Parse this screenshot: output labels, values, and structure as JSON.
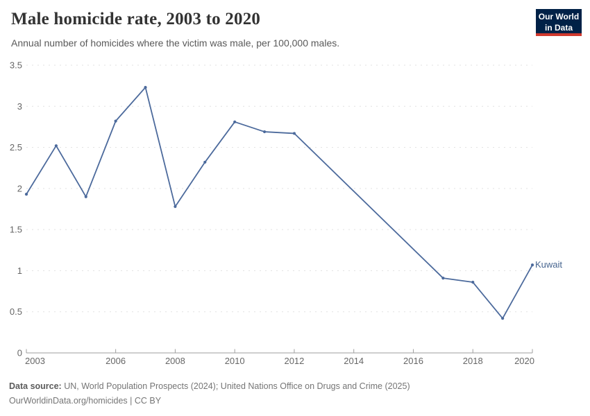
{
  "header": {
    "title": "Male homicide rate, 2003 to 2020",
    "subtitle": "Annual number of homicides where the victim was male, per 100,000 males.",
    "logo": {
      "line1": "Our World",
      "line2": "in Data",
      "bg_color": "#002147",
      "bar_color": "#d0392e"
    }
  },
  "chart_data": {
    "type": "line",
    "title": "Male homicide rate, 2003 to 2020",
    "xlabel": "",
    "ylabel": "",
    "xlim": [
      2003,
      2020
    ],
    "ylim": [
      0,
      3.5
    ],
    "grid": "horizontal-dashed",
    "legend_position": "end-of-line",
    "x_ticks": [
      2003,
      2006,
      2008,
      2010,
      2012,
      2014,
      2016,
      2018,
      2020
    ],
    "y_ticks": [
      0,
      0.5,
      1,
      1.5,
      2,
      2.5,
      3,
      3.5
    ],
    "note": "no data for 2013-2016; line connects 2012 directly to 2017",
    "series": [
      {
        "name": "Kuwait",
        "color": "#4c6a9c",
        "points": [
          [
            2003,
            1.93
          ],
          [
            2004,
            2.52
          ],
          [
            2005,
            1.9
          ],
          [
            2006,
            2.82
          ],
          [
            2007,
            3.23
          ],
          [
            2008,
            1.78
          ],
          [
            2009,
            2.32
          ],
          [
            2010,
            2.81
          ],
          [
            2011,
            2.69
          ],
          [
            2012,
            2.67
          ],
          [
            2017,
            0.91
          ],
          [
            2018,
            0.86
          ],
          [
            2019,
            0.42
          ],
          [
            2020,
            1.07
          ]
        ]
      }
    ],
    "colors": {
      "line": "#4c6a9c",
      "gridline": "#e1e1e1",
      "axis": "#9e9e9e",
      "tick_label": "#666666"
    }
  },
  "footer": {
    "source_label": "Data source:",
    "source_text": "UN, World Population Prospects (2024); United Nations Office on Drugs and Crime (2025)",
    "link_line": "OurWorldinData.org/homicides | CC BY"
  }
}
